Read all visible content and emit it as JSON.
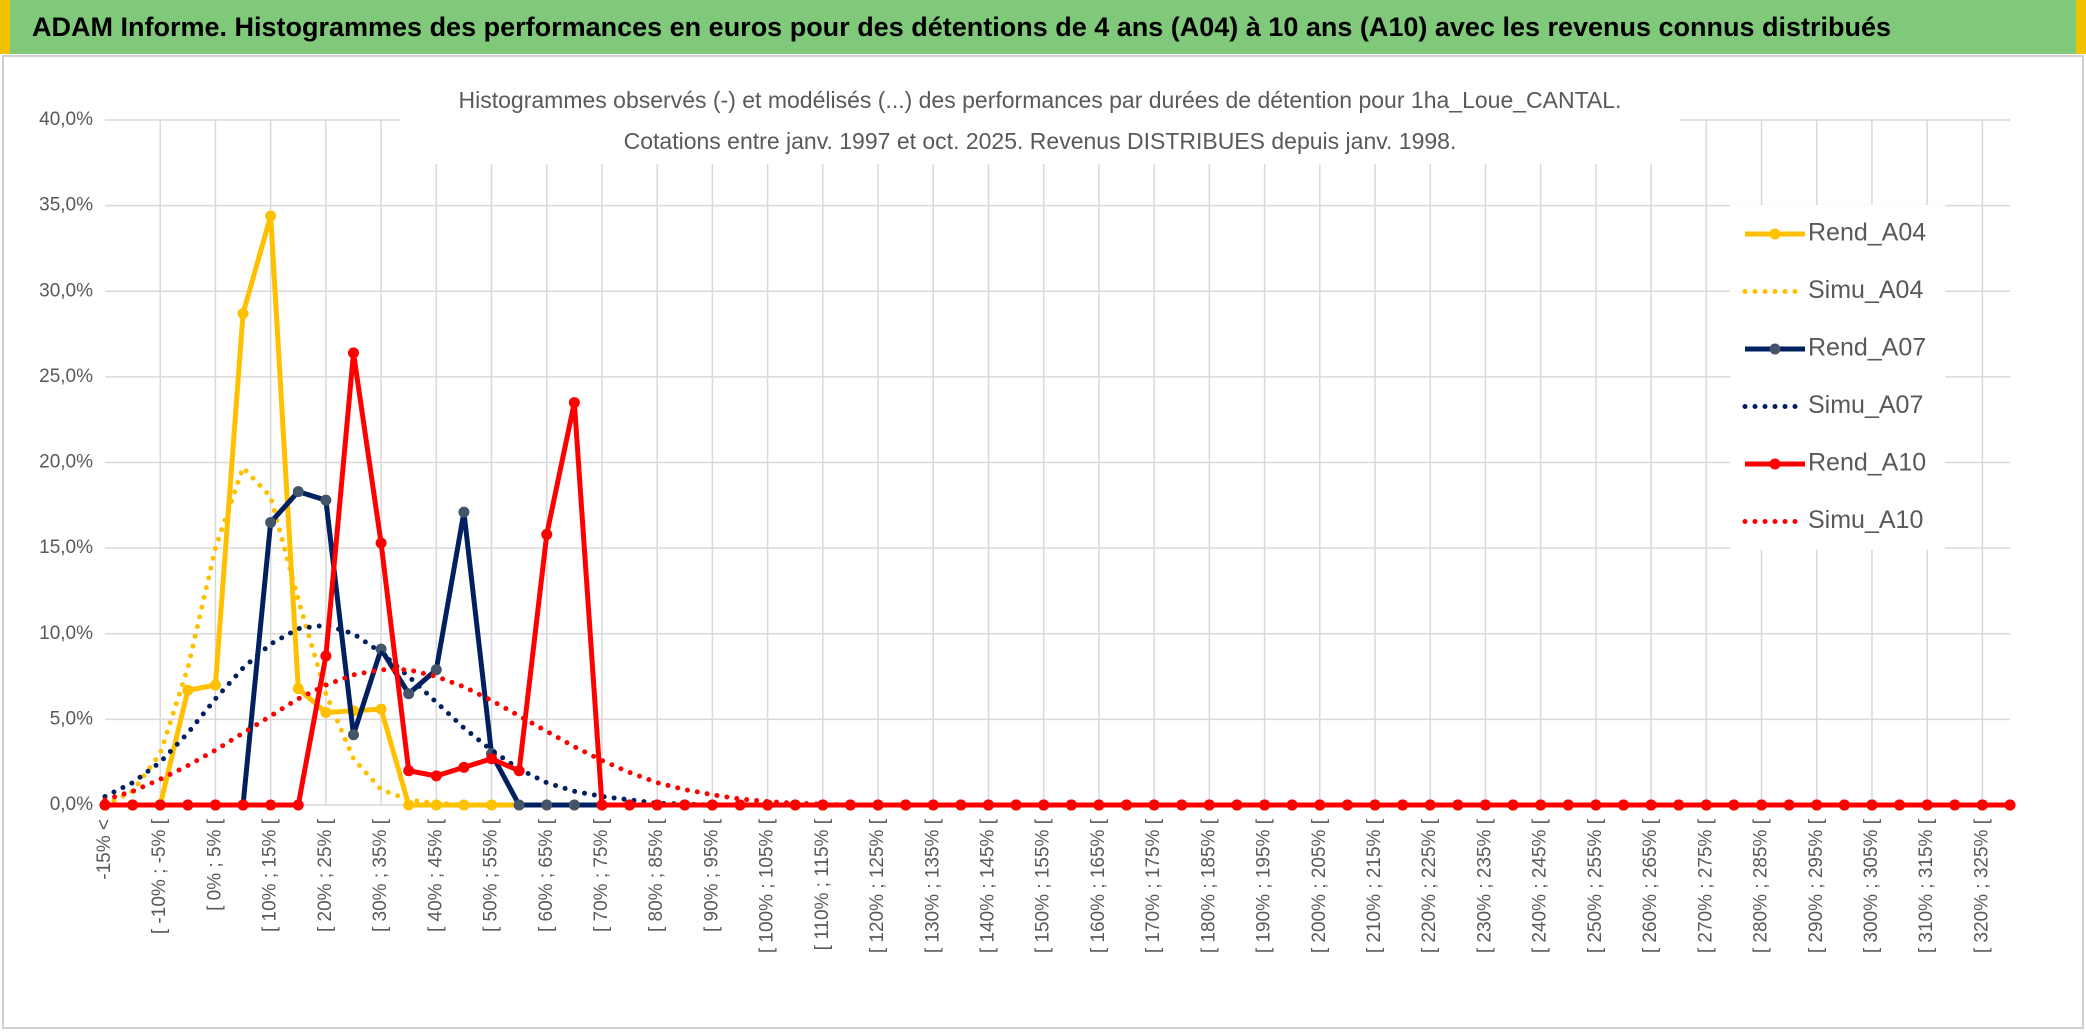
{
  "header": {
    "title": "ADAM Informe. Histogrammes des performances en euros pour des détentions de 4 ans (A04) à 10 ans (A10) avec les revenus connus distribués"
  },
  "chart_data": {
    "type": "line",
    "title": "Histogrammes observés (-) et modélisés (...) des performances par durées de détention pour 1ha_Loue_CANTAL.",
    "subtitle": "Cotations entre janv. 1997 et oct. 2025. Revenus DISTRIBUES depuis janv. 1998.",
    "categories": [
      "-15% <",
      null,
      "[ -10% ; -5% [",
      null,
      "[ 0% ; 5% [",
      null,
      "[ 10% ; 15% [",
      null,
      "[ 20% ; 25% [",
      null,
      "[ 30% ; 35% [",
      null,
      "[ 40% ; 45% [",
      null,
      "[ 50% ; 55% [",
      null,
      "[ 60% ; 65% [",
      null,
      "[ 70% ; 75% [",
      null,
      "[ 80% ; 85% [",
      null,
      "[ 90% ; 95% [",
      null,
      "[ 100% ; 105% [",
      null,
      "[ 110% ; 115% [",
      null,
      "[ 120% ; 125% [",
      null,
      "[ 130% ; 135% [",
      null,
      "[ 140% ; 145% [",
      null,
      "[ 150% ; 155% [",
      null,
      "[ 160% ; 165% [",
      null,
      "[ 170% ; 175% [",
      null,
      "[ 180% ; 185% [",
      null,
      "[ 190% ; 195% [",
      null,
      "[ 200% ; 205% [",
      null,
      "[ 210% ; 215% [",
      null,
      "[ 220% ; 225% [",
      null,
      "[ 230% ; 235% [",
      null,
      "[ 240% ; 245% [",
      null,
      "[ 250% ; 255% [",
      null,
      "[ 260% ; 265% [",
      null,
      "[ 270% ; 275% [",
      null,
      "[ 280% ; 285% [",
      null,
      "[ 290% ; 295% [",
      null,
      "[ 300% ; 305% [",
      null,
      "[ 310% ; 315% [",
      null,
      "[ 320% ; 325% [",
      null
    ],
    "series": [
      {
        "name": "Rend_A04",
        "color": "#FFC000",
        "style": "solid",
        "markers": true,
        "marker_color": "#FFC000",
        "values": [
          0,
          0,
          0,
          6.7,
          7.0,
          28.7,
          34.4,
          6.8,
          5.4,
          5.5,
          5.6,
          0,
          0,
          0,
          0,
          0,
          0,
          0,
          0,
          0,
          0,
          0,
          0,
          0,
          0,
          0,
          0,
          0,
          0,
          0,
          0,
          0,
          0,
          0,
          0,
          0,
          0,
          0,
          0,
          0,
          0,
          0,
          0,
          0,
          0,
          0,
          0,
          0,
          0,
          0,
          0,
          0,
          0,
          0,
          0,
          0,
          0,
          0,
          0,
          0,
          0,
          0,
          0,
          0,
          0,
          0,
          0,
          0,
          0,
          0
        ]
      },
      {
        "name": "Simu_A04",
        "color": "#FFC000",
        "style": "dotted",
        "markers": false,
        "values": [
          0,
          0.8,
          3,
          8,
          15,
          19.7,
          18,
          12,
          6.5,
          2.7,
          0.9,
          0.3,
          0.1,
          0,
          0,
          0,
          0,
          0,
          0,
          0,
          0,
          0,
          0,
          0,
          0,
          0,
          0,
          0,
          0,
          0,
          0,
          0,
          0,
          0,
          0,
          0,
          0,
          0,
          0,
          0,
          0,
          0,
          0,
          0,
          0,
          0,
          0,
          0,
          0,
          0,
          0,
          0,
          0,
          0,
          0,
          0,
          0,
          0,
          0,
          0,
          0,
          0,
          0,
          0,
          0,
          0,
          0,
          0,
          0,
          0
        ]
      },
      {
        "name": "Rend_A07",
        "color": "#002060",
        "style": "solid",
        "markers": true,
        "marker_color": "#44546A",
        "values": [
          0,
          0,
          0,
          0,
          0,
          0,
          16.5,
          18.3,
          17.8,
          4.1,
          9.1,
          6.5,
          7.9,
          17.1,
          3.0,
          0,
          0,
          0,
          0,
          0,
          0,
          0,
          0,
          0,
          0,
          0,
          0,
          0,
          0,
          0,
          0,
          0,
          0,
          0,
          0,
          0,
          0,
          0,
          0,
          0,
          0,
          0,
          0,
          0,
          0,
          0,
          0,
          0,
          0,
          0,
          0,
          0,
          0,
          0,
          0,
          0,
          0,
          0,
          0,
          0,
          0,
          0,
          0,
          0,
          0,
          0,
          0,
          0,
          0,
          0
        ]
      },
      {
        "name": "Simu_A07",
        "color": "#002060",
        "style": "dotted",
        "markers": false,
        "values": [
          0.5,
          1.3,
          2.5,
          4.2,
          6.2,
          8.0,
          9.4,
          10.3,
          10.5,
          10.0,
          8.9,
          7.5,
          6.0,
          4.5,
          3.2,
          2.1,
          1.3,
          0.8,
          0.5,
          0.3,
          0.1,
          0.05,
          0,
          0,
          0,
          0,
          0,
          0,
          0,
          0,
          0,
          0,
          0,
          0,
          0,
          0,
          0,
          0,
          0,
          0,
          0,
          0,
          0,
          0,
          0,
          0,
          0,
          0,
          0,
          0,
          0,
          0,
          0,
          0,
          0,
          0,
          0,
          0,
          0,
          0,
          0,
          0,
          0,
          0,
          0,
          0,
          0,
          0,
          0,
          0
        ]
      },
      {
        "name": "Rend_A10",
        "color": "#FF0000",
        "style": "solid",
        "markers": true,
        "marker_color": "#FF0000",
        "values": [
          0,
          0,
          0,
          0,
          0,
          0,
          0,
          0,
          8.7,
          26.4,
          15.3,
          2.0,
          1.7,
          2.2,
          2.7,
          2.0,
          15.8,
          23.5,
          0,
          0,
          0,
          0,
          0,
          0,
          0,
          0,
          0,
          0,
          0,
          0,
          0,
          0,
          0,
          0,
          0,
          0,
          0,
          0,
          0,
          0,
          0,
          0,
          0,
          0,
          0,
          0,
          0,
          0,
          0,
          0,
          0,
          0,
          0,
          0,
          0,
          0,
          0,
          0,
          0,
          0,
          0,
          0,
          0,
          0,
          0,
          0,
          0,
          0,
          0,
          0
        ]
      },
      {
        "name": "Simu_A10",
        "color": "#FF0000",
        "style": "dotted",
        "markers": false,
        "values": [
          0.3,
          0.8,
          1.5,
          2.3,
          3.2,
          4.2,
          5.2,
          6.2,
          7.0,
          7.6,
          7.9,
          7.9,
          7.5,
          6.9,
          6.1,
          5.2,
          4.3,
          3.4,
          2.6,
          1.9,
          1.3,
          0.9,
          0.6,
          0.35,
          0.2,
          0.1,
          0.05,
          0,
          0,
          0,
          0,
          0,
          0,
          0,
          0,
          0,
          0,
          0,
          0,
          0,
          0,
          0,
          0,
          0,
          0,
          0,
          0,
          0,
          0,
          0,
          0,
          0,
          0,
          0,
          0,
          0,
          0,
          0,
          0,
          0,
          0,
          0,
          0,
          0,
          0,
          0,
          0,
          0,
          0,
          0
        ]
      }
    ],
    "ylim": [
      0,
      40
    ],
    "yticks": [
      {
        "value": 0,
        "label": "0,0%"
      },
      {
        "value": 5,
        "label": "5,0%"
      },
      {
        "value": 10,
        "label": "10,0%"
      },
      {
        "value": 15,
        "label": "15,0%"
      },
      {
        "value": 20,
        "label": "20,0%"
      },
      {
        "value": 25,
        "label": "25,0%"
      },
      {
        "value": 30,
        "label": "30,0%"
      },
      {
        "value": 35,
        "label": "35,0%"
      },
      {
        "value": 40,
        "label": "40,0%"
      }
    ],
    "grid": true,
    "legend": "right"
  }
}
